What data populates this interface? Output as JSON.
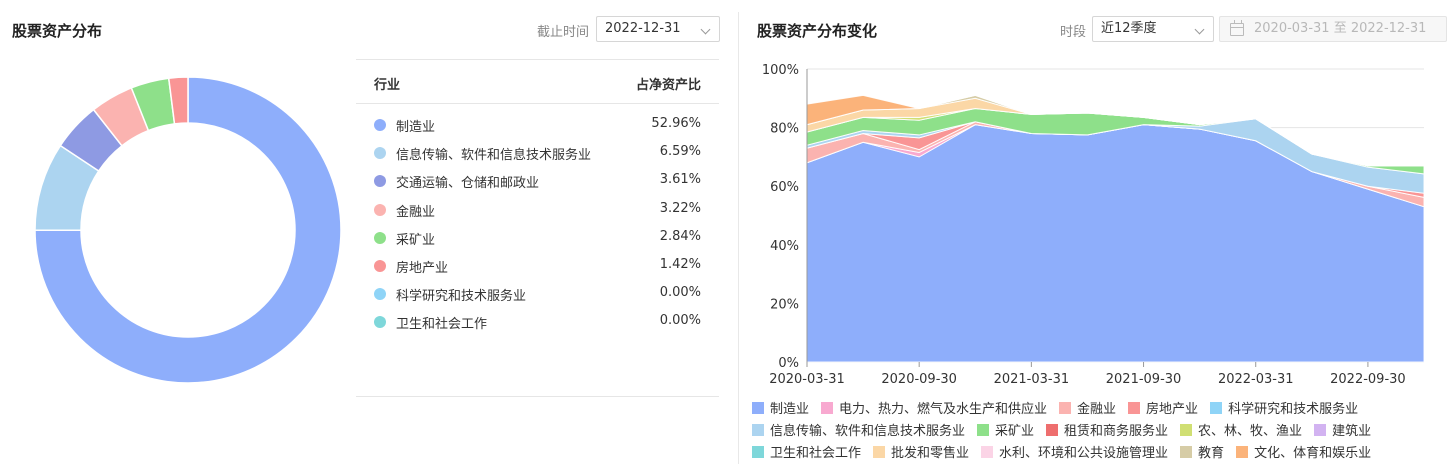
{
  "left_panel": {
    "title": "股票资产分布",
    "date_label": "截止时间",
    "date_value": "2022-12-31",
    "table": {
      "col_industry": "行业",
      "col_ratio": "占净资产比",
      "rows": [
        {
          "name": "制造业",
          "value": "52.96%",
          "color": "#8eaefb"
        },
        {
          "name": "信息传输、软件和信息技术服务业",
          "value": "6.59%",
          "color": "#acd4f0"
        },
        {
          "name": "交通运输、仓储和邮政业",
          "value": "3.61%",
          "color": "#8e9ae3"
        },
        {
          "name": "金融业",
          "value": "3.22%",
          "color": "#fbb3b0"
        },
        {
          "name": "采矿业",
          "value": "2.84%",
          "color": "#8ee08a"
        },
        {
          "name": "房地产业",
          "value": "1.42%",
          "color": "#f99595"
        },
        {
          "name": "科学研究和技术服务业",
          "value": "0.00%",
          "color": "#8fd4f7"
        },
        {
          "name": "卫生和社会工作",
          "value": "0.00%",
          "color": "#7ed7da"
        }
      ]
    }
  },
  "right_panel": {
    "title": "股票资产分布变化",
    "period_label": "时段",
    "period_value": "近12季度",
    "range_start": "2020-03-31",
    "range_sep": "至",
    "range_end": "2022-12-31"
  },
  "chart_data": [
    {
      "type": "pie",
      "subtype": "donut",
      "categories": [
        "制造业",
        "信息传输、软件和信息技术服务业",
        "交通运输、仓储和邮政业",
        "金融业",
        "采矿业",
        "房地产业",
        "科学研究和技术服务业",
        "卫生和社会工作"
      ],
      "values": [
        52.96,
        6.59,
        3.61,
        3.22,
        2.84,
        1.42,
        0.0,
        0.0
      ],
      "colors": [
        "#8eaefb",
        "#acd4f0",
        "#8e9ae3",
        "#fbb3b0",
        "#8ee08a",
        "#f99595",
        "#8fd4f7",
        "#7ed7da"
      ]
    },
    {
      "type": "area",
      "stacked": true,
      "x": [
        "2020-03-31",
        "2020-06-30",
        "2020-09-30",
        "2020-12-31",
        "2021-03-31",
        "2021-06-30",
        "2021-09-30",
        "2021-12-31",
        "2022-03-31",
        "2022-06-30",
        "2022-09-30",
        "2022-12-31"
      ],
      "x_tick_labels": [
        "2020-03-31",
        "2020-09-30",
        "2021-03-31",
        "2021-09-30",
        "2022-03-31",
        "2022-09-30"
      ],
      "y_tick_labels": [
        "0%",
        "20%",
        "40%",
        "60%",
        "80%",
        "100%"
      ],
      "ylim": [
        0,
        100
      ],
      "grid": true,
      "legend_position": "bottom",
      "series": [
        {
          "name": "制造业",
          "color": "#8eaefb",
          "values": [
            68,
            75,
            70,
            81,
            78,
            77.5,
            81,
            79.5,
            75.5,
            65,
            59,
            53
          ]
        },
        {
          "name": "电力、热力、燃气及水生产和供应业",
          "color": "#f8a9d0",
          "values": [
            0,
            0,
            1.5,
            0,
            0,
            0,
            0,
            0,
            0,
            0,
            0,
            0
          ]
        },
        {
          "name": "金融业",
          "color": "#fbb3b0",
          "values": [
            5,
            3,
            1,
            1,
            0,
            0,
            0,
            0,
            0,
            0,
            1,
            3.2
          ]
        },
        {
          "name": "房地产业",
          "color": "#f99595",
          "values": [
            0,
            0,
            4,
            0,
            0,
            0,
            0,
            0,
            0,
            0,
            0,
            1.4
          ]
        },
        {
          "name": "科学研究和技术服务业",
          "color": "#8fd4f7",
          "values": [
            0,
            0,
            0,
            0,
            0,
            0,
            0,
            0,
            0,
            0,
            0,
            0
          ]
        },
        {
          "name": "信息传输、软件和信息技术服务业",
          "color": "#acd4f0",
          "values": [
            1,
            1,
            1,
            0,
            0,
            0,
            0,
            1,
            7.5,
            6,
            6.5,
            6.6
          ]
        },
        {
          "name": "采矿业",
          "color": "#8ee08a",
          "values": [
            4.5,
            4.5,
            5,
            4.5,
            6.5,
            7.5,
            2.5,
            0.5,
            0,
            0,
            0.5,
            2.8
          ]
        },
        {
          "name": "租赁和商务服务业",
          "color": "#ee6e6e",
          "values": [
            0,
            0,
            0,
            0,
            0,
            0,
            0,
            0,
            0,
            0,
            0,
            0
          ]
        },
        {
          "name": "农、林、牧、渔业",
          "color": "#d0df73",
          "values": [
            0,
            0,
            1,
            0,
            0,
            0,
            0,
            0,
            0,
            0,
            0,
            0
          ]
        },
        {
          "name": "建筑业",
          "color": "#d2b3f1",
          "values": [
            0,
            0,
            0,
            0,
            0,
            0,
            0,
            0,
            0,
            0,
            0,
            0
          ]
        },
        {
          "name": "卫生和社会工作",
          "color": "#7ed7da",
          "values": [
            0,
            0,
            0,
            0,
            0,
            0,
            0,
            0,
            0,
            0,
            0,
            0
          ]
        },
        {
          "name": "批发和零售业",
          "color": "#fbd7a6",
          "values": [
            2.5,
            2.5,
            3,
            3.5,
            0,
            0,
            0,
            0,
            0,
            0,
            0,
            0
          ]
        },
        {
          "name": "水利、环境和公共设施管理业",
          "color": "#fbd4e6",
          "values": [
            0,
            0,
            0,
            0,
            0,
            0,
            0,
            0,
            0,
            0,
            0,
            0
          ]
        },
        {
          "name": "教育",
          "color": "#d6cca6",
          "values": [
            0,
            0,
            0,
            1,
            0,
            0,
            0,
            0,
            0,
            0,
            0,
            0
          ]
        },
        {
          "name": "文化、体育和娱乐业",
          "color": "#fbb37a",
          "values": [
            7,
            5,
            0,
            0,
            0,
            0,
            0,
            0,
            0,
            0,
            0,
            0
          ]
        }
      ]
    }
  ]
}
